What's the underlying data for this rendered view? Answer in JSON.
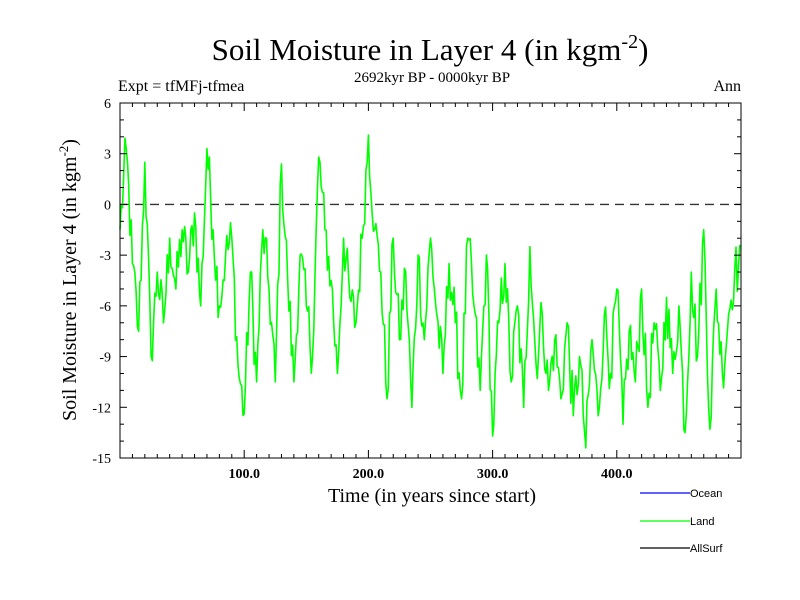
{
  "chart_data": {
    "type": "line",
    "title": "Soil Moisture in Layer 4 (in kgm",
    "title_sup": "-2",
    "title_close": ")",
    "subtitle": "2692kyr BP - 0000kyr BP",
    "left_label": "Expt = tfMFj-tfmea",
    "right_label": "Ann",
    "xlabel": "Time (in years since start)",
    "ylabel": "Soil Moisture in Layer 4 (in kgm",
    "ylabel_sup": "-2",
    "ylabel_close": ")",
    "xlim": [
      0,
      500
    ],
    "ylim": [
      -15,
      6
    ],
    "xticks": [
      100,
      200,
      300,
      400
    ],
    "xtick_labels": [
      "100.0",
      "200.0",
      "300.0",
      "400.0"
    ],
    "yticks": [
      6,
      3,
      0,
      -3,
      -6,
      -9,
      -12,
      -15
    ],
    "ytick_labels": [
      "6",
      "3",
      "0",
      "-3",
      "-6",
      "-9",
      "-12",
      "-15"
    ],
    "zero_line": 0,
    "series": [
      {
        "name": "Ocean",
        "color": "#0000ff",
        "values": []
      },
      {
        "name": "AllSurf",
        "color": "#000000",
        "values": []
      },
      {
        "name": "Land",
        "color": "#00ff00",
        "x": [
          0,
          5,
          10,
          15,
          20,
          25,
          30,
          35,
          40,
          45,
          50,
          55,
          60,
          65,
          70,
          75,
          80,
          85,
          90,
          95,
          100,
          105,
          110,
          115,
          120,
          125,
          130,
          135,
          140,
          145,
          150,
          155,
          160,
          165,
          170,
          175,
          180,
          185,
          190,
          195,
          200,
          205,
          210,
          215,
          220,
          225,
          230,
          235,
          240,
          245,
          250,
          255,
          260,
          265,
          270,
          275,
          280,
          285,
          290,
          295,
          300,
          305,
          310,
          315,
          320,
          325,
          330,
          335,
          340,
          345,
          350,
          355,
          360,
          365,
          370,
          375,
          380,
          385,
          390,
          395,
          400,
          405,
          410,
          415,
          420,
          425,
          430,
          435,
          440,
          445,
          450,
          455,
          460,
          465,
          470,
          475,
          480,
          485,
          490,
          495
        ],
        "values": [
          -1.5,
          3.3,
          -3.5,
          -7.5,
          2.5,
          -9,
          -4,
          -7,
          -2,
          -5,
          -1.5,
          -4,
          -0.5,
          -6,
          3.3,
          -1.5,
          -6,
          -3,
          -2,
          -9.5,
          -12.4,
          -4,
          -10.5,
          -1.5,
          -5,
          -10.5,
          2.4,
          -4.5,
          -10.5,
          -3,
          -6,
          -9,
          2.8,
          -1.5,
          -4.5,
          -10,
          -2,
          -5.5,
          -7,
          -2,
          4.1,
          -1.5,
          -4,
          -11.5,
          -2,
          -8,
          -4,
          -12,
          -3,
          -8,
          -2,
          -6.5,
          -10,
          -3.5,
          -7,
          -11.5,
          -2,
          -6,
          -11,
          -3,
          -13.7,
          -7,
          -3.5,
          -10.5,
          -6,
          -12,
          -2.5,
          -9.5,
          -6.5,
          -11,
          -8,
          -11.5,
          -7,
          -12.5,
          -9,
          -14.4,
          -8,
          -12.5,
          -6.5,
          -10,
          -5,
          -13,
          -7.5,
          -10.5,
          -5,
          -12,
          -7,
          -11,
          -5.5,
          -10,
          -6,
          -13.5,
          -4,
          -9,
          -1.5,
          -13.3,
          -5,
          -10,
          -6.5,
          -3.8
        ]
      }
    ],
    "legend": [
      {
        "label": "Ocean",
        "color": "#0000ff"
      },
      {
        "label": "Land",
        "color": "#00ff00"
      },
      {
        "label": "AllSurf",
        "color": "#000000"
      }
    ],
    "legend_position": "bottom-right"
  }
}
